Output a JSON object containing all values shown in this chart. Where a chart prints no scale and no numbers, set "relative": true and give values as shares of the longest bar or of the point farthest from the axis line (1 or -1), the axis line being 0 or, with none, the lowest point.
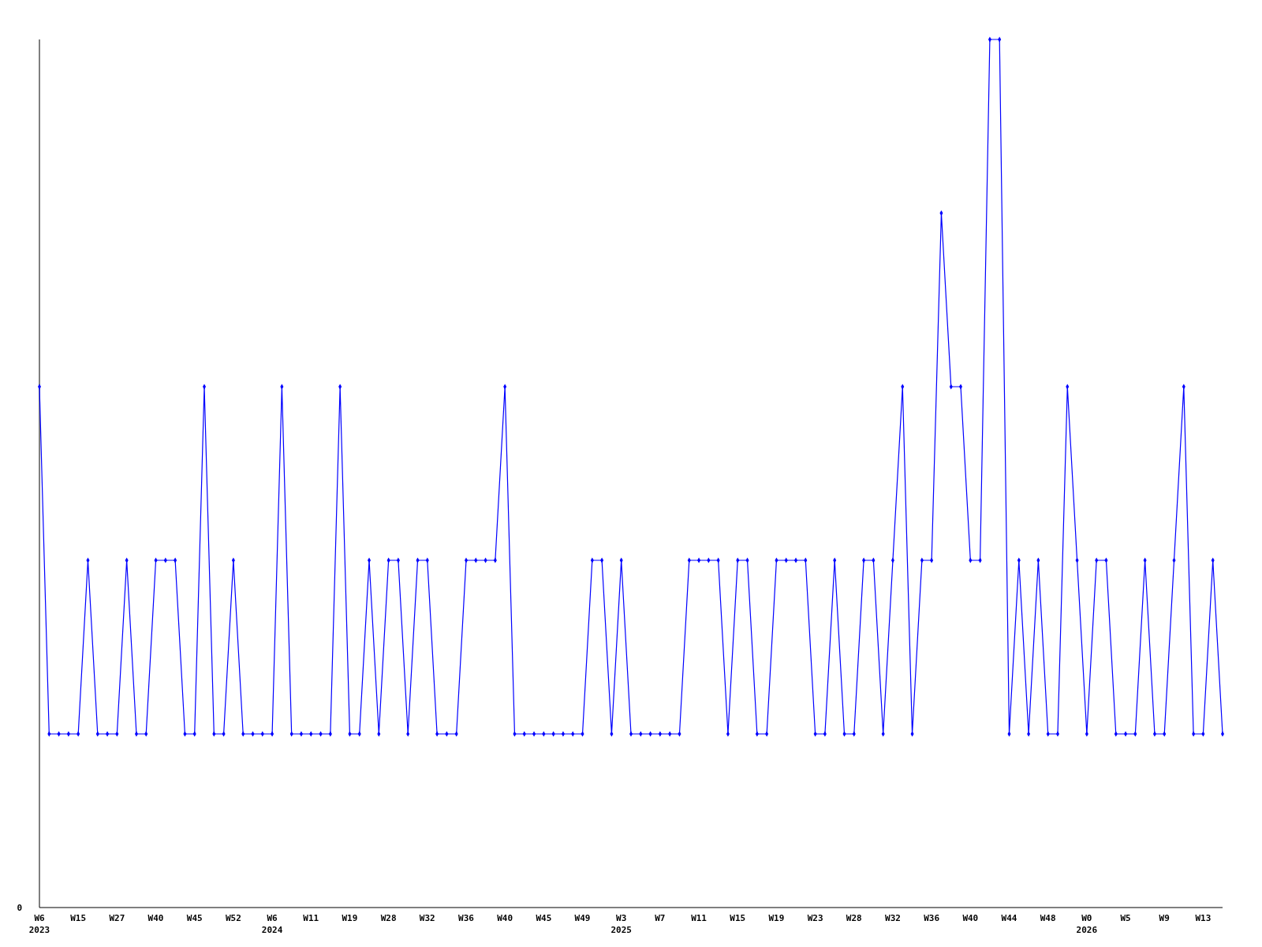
{
  "chart_data": {
    "type": "line",
    "relative": true,
    "annotations": [
      "0"
    ],
    "marker": "diamond",
    "line_style": "solid",
    "categories": [
      "W6\n2023",
      null,
      null,
      null,
      "W15",
      null,
      null,
      null,
      "W27",
      null,
      null,
      null,
      "W40",
      null,
      null,
      null,
      "W45",
      null,
      null,
      null,
      "W52",
      null,
      null,
      null,
      "W6\n2024",
      null,
      null,
      null,
      "W11",
      null,
      null,
      null,
      "W19",
      null,
      null,
      null,
      "W28",
      null,
      null,
      null,
      "W32",
      null,
      null,
      null,
      "W36",
      null,
      null,
      null,
      "W40",
      null,
      null,
      null,
      "W45",
      null,
      null,
      null,
      "W49",
      null,
      null,
      null,
      "W3\n2025",
      null,
      null,
      null,
      "W7",
      null,
      null,
      null,
      "W11",
      null,
      null,
      null,
      "W15",
      null,
      null,
      null,
      "W19",
      null,
      null,
      null,
      "W23",
      null,
      null,
      null,
      "W28",
      null,
      null,
      null,
      "W32",
      null,
      null,
      null,
      "W36",
      null,
      null,
      null,
      "W40",
      null,
      null,
      null,
      "W44",
      null,
      null,
      null,
      "W48",
      null,
      null,
      null,
      "W0\n2026",
      null,
      null,
      null,
      "W5",
      null,
      null,
      null,
      "W9",
      null,
      null,
      null,
      "W13",
      null,
      null
    ],
    "series": [
      {
        "color": "#0000ff",
        "values": [
          0.6,
          0.2,
          0.2,
          0.2,
          0.2,
          0.4,
          0.2,
          0.2,
          0.2,
          0.4,
          0.2,
          0.2,
          0.4,
          0.4,
          0.4,
          0.2,
          0.2,
          0.6,
          0.2,
          0.2,
          0.4,
          0.2,
          0.2,
          0.2,
          0.2,
          0.6,
          0.2,
          0.2,
          0.2,
          0.2,
          0.2,
          0.6,
          0.2,
          0.2,
          0.4,
          0.2,
          0.4,
          0.4,
          0.2,
          0.4,
          0.4,
          0.2,
          0.2,
          0.2,
          0.4,
          0.4,
          0.4,
          0.4,
          0.6,
          0.2,
          0.2,
          0.2,
          0.2,
          0.2,
          0.2,
          0.2,
          0.2,
          0.4,
          0.4,
          0.2,
          0.4,
          0.2,
          0.2,
          0.2,
          0.2,
          0.2,
          0.2,
          0.4,
          0.4,
          0.4,
          0.4,
          0.2,
          0.4,
          0.4,
          0.2,
          0.2,
          0.4,
          0.4,
          0.4,
          0.4,
          0.2,
          0.2,
          0.4,
          0.2,
          0.2,
          0.4,
          0.4,
          0.2,
          0.4,
          0.6,
          0.2,
          0.4,
          0.4,
          0.8,
          0.6,
          0.6,
          0.4,
          0.4,
          1,
          1,
          0.2,
          0.4,
          0.2,
          0.4,
          0.2,
          0.2,
          0.6,
          0.4,
          0.2,
          0.4,
          0.4,
          0.2,
          0.2,
          0.2,
          0.4,
          0.2,
          0.2,
          0.4,
          0.6,
          0.2,
          0.2,
          0.4,
          0.2
        ]
      }
    ]
  }
}
